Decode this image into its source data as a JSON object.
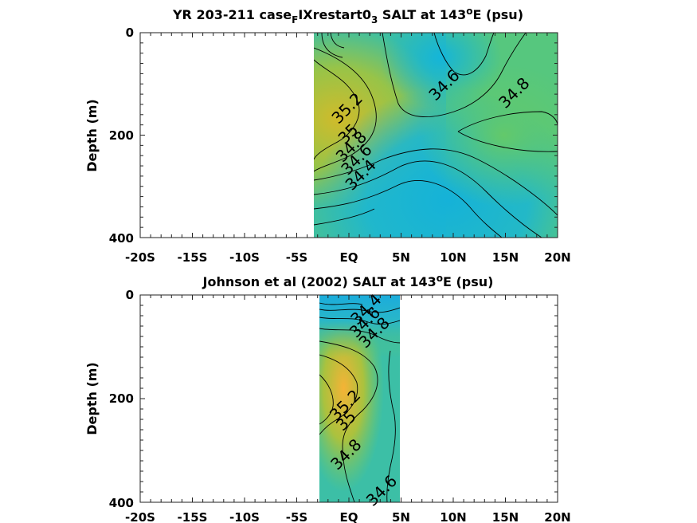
{
  "chart_data": [
    {
      "type": "heatmap",
      "title": "YR 203-211 case",
      "title_parts": {
        "pre": "YR 203-211 case",
        "sub1": "F",
        "mid": "IXrestart0",
        "sub2": "3",
        "post1": " SALT at 143",
        "sup": "o",
        "post2": "E (psu)"
      },
      "ylabel": "Depth (m)",
      "xlim": [
        -20,
        20
      ],
      "ylim": [
        0,
        400
      ],
      "x_ticks": [
        "-20S",
        "-15S",
        "-10S",
        "-5S",
        "EQ",
        "5N",
        "10N",
        "15N",
        "20N"
      ],
      "y_ticks": [
        "0",
        "200",
        "400"
      ],
      "data_extent_lat": [
        -3.3,
        20
      ],
      "contour_labels": [
        {
          "text": "35.2",
          "lat": 0.2,
          "depth": 155
        },
        {
          "text": "35",
          "lat": 0.3,
          "depth": 205
        },
        {
          "text": "34.8",
          "lat": 0.6,
          "depth": 230
        },
        {
          "text": "34.6",
          "lat": 1.1,
          "depth": 255
        },
        {
          "text": "34.4",
          "lat": 1.5,
          "depth": 285
        },
        {
          "text": "34.6",
          "lat": 9.5,
          "depth": 110
        },
        {
          "text": "34.8",
          "lat": 16.2,
          "depth": 125
        }
      ]
    },
    {
      "type": "heatmap",
      "title": "Johnson et al (2002) SALT at 143",
      "title_parts": {
        "pre": "Johnson et al (2002) SALT at 143",
        "sup": "o",
        "post": "E (psu)"
      },
      "ylabel": "Depth (m)",
      "xlim": [
        -20,
        20
      ],
      "ylim": [
        0,
        400
      ],
      "x_ticks": [
        "-20S",
        "-15S",
        "-10S",
        "-5S",
        "EQ",
        "5N",
        "10N",
        "15N",
        "20N"
      ],
      "y_ticks": [
        "0",
        "200",
        "400"
      ],
      "data_extent_lat": [
        -2.8,
        5
      ],
      "contour_labels": [
        {
          "text": "34.4",
          "lat": 2.0,
          "depth": 35
        },
        {
          "text": "34.6",
          "lat": 1.9,
          "depth": 60
        },
        {
          "text": "34.8",
          "lat": 2.8,
          "depth": 80
        },
        {
          "text": "35.2",
          "lat": 0.0,
          "depth": 220
        },
        {
          "text": "35",
          "lat": 0.1,
          "depth": 250
        },
        {
          "text": "34.8",
          "lat": 0.1,
          "depth": 315
        },
        {
          "text": "34.6",
          "lat": 3.5,
          "depth": 385
        }
      ]
    }
  ]
}
